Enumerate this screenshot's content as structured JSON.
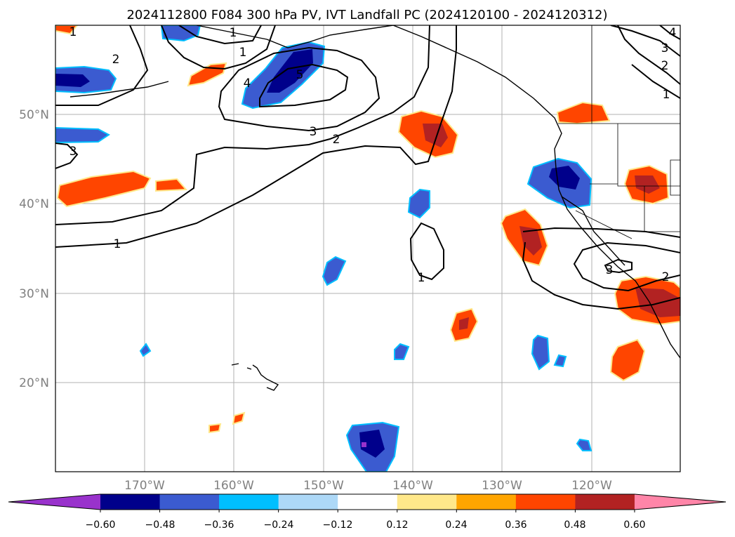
{
  "figure": {
    "title": "2024112800 F084 300 hPa PV, IVT Landfall PC (2024120100 - 2024120312)"
  },
  "map": {
    "extent": {
      "lon_min": -180,
      "lon_max": -110,
      "lat_min": 10,
      "lat_max": 60
    },
    "lat_labels": [
      "50°N",
      "40°N",
      "30°N",
      "20°N"
    ],
    "lon_labels": [
      "170°W",
      "160°W",
      "150°W",
      "140°W",
      "130°W",
      "120°W"
    ],
    "contour_labels": [
      "1",
      "2",
      "3",
      "4",
      "5",
      "1",
      "3",
      "2",
      "1",
      "1",
      "1",
      "2",
      "3",
      "4",
      "3",
      "2",
      "1"
    ]
  },
  "colorbar": {
    "ticks": [
      "−0.60",
      "−0.48",
      "−0.36",
      "−0.24",
      "−0.12",
      "0.12",
      "0.24",
      "0.36",
      "0.48",
      "0.60"
    ],
    "colors": [
      "#9932cc",
      "#00008b",
      "#3b5bd0",
      "#00bfff",
      "#add8f7",
      "#ffffff",
      "#ffe88a",
      "#ffa500",
      "#ff4500",
      "#b22222",
      "#ff85a8"
    ]
  }
}
